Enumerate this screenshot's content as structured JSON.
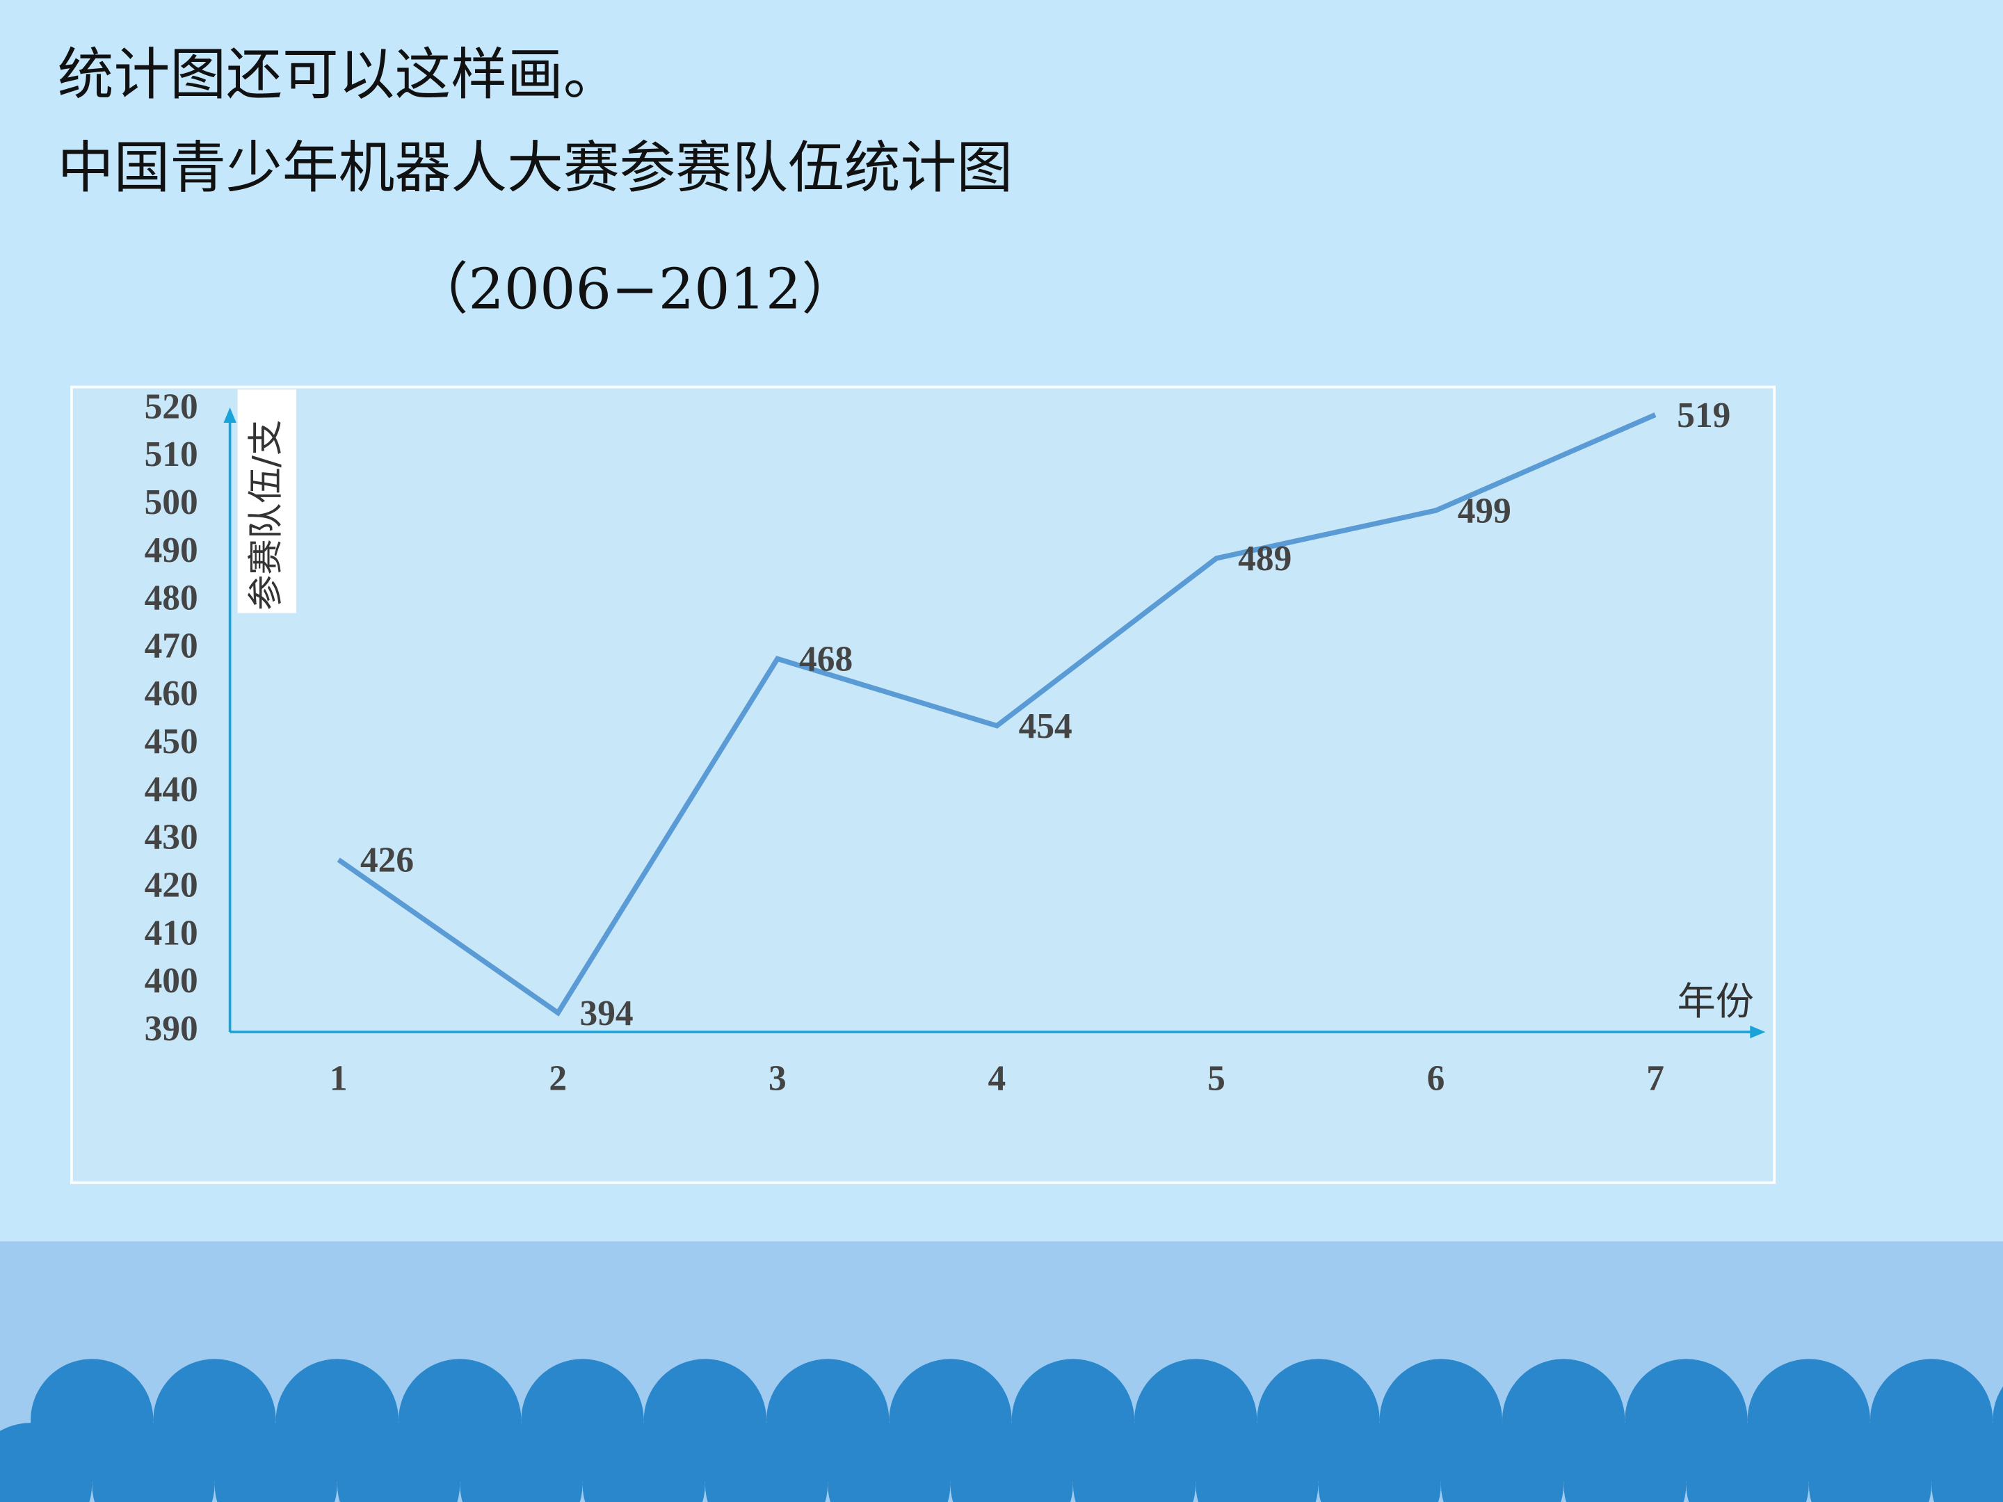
{
  "intro": "统计图还可以这样画。",
  "chart_data": {
    "type": "line",
    "title": "中国青少年机器人大赛参赛队伍统计图",
    "subtitle": "（2006−2012）",
    "y_label": "参赛队伍/支",
    "x_label": "年份",
    "categories": [
      "1",
      "2",
      "3",
      "4",
      "5",
      "6",
      "7"
    ],
    "series": [
      {
        "name": "参赛队伍",
        "color": "#5b9bd5",
        "values": [
          426,
          394,
          468,
          454,
          489,
          499,
          519
        ]
      }
    ],
    "ylim": [
      390,
      520
    ],
    "yticks": [
      390,
      400,
      410,
      420,
      430,
      440,
      450,
      460,
      470,
      480,
      490,
      500,
      510,
      520
    ],
    "axis_color": "#1aa3d9"
  }
}
